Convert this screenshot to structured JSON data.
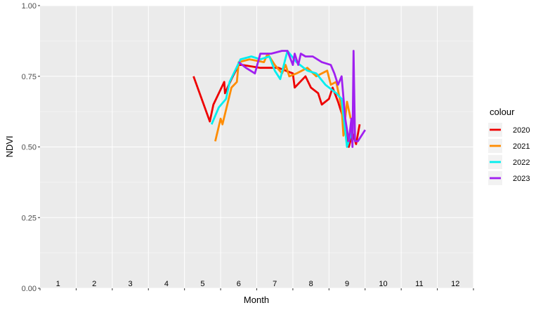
{
  "chart_data": {
    "type": "line",
    "xlabel": "Month",
    "ylabel": "NDVI",
    "xlim": [
      0.5,
      12.5
    ],
    "ylim": [
      0.0,
      1.0
    ],
    "month_labels": [
      "1",
      "2",
      "3",
      "4",
      "5",
      "6",
      "7",
      "8",
      "9",
      "10",
      "11",
      "12"
    ],
    "y_ticks": [
      0.0,
      0.25,
      0.5,
      0.75,
      1.0
    ],
    "y_tick_labels": [
      "0.00",
      "0.25",
      "0.50",
      "0.75",
      "1.00"
    ],
    "grid": true,
    "legend": {
      "title": "colour",
      "position": "right"
    },
    "series": [
      {
        "name": "2020",
        "color": "#ee0000",
        "points": [
          [
            4.75,
            0.75
          ],
          [
            5.2,
            0.59
          ],
          [
            5.3,
            0.65
          ],
          [
            5.6,
            0.73
          ],
          [
            5.62,
            0.69
          ],
          [
            5.8,
            0.74
          ],
          [
            6.0,
            0.79
          ],
          [
            6.1,
            0.79
          ],
          [
            6.6,
            0.78
          ],
          [
            7.1,
            0.78
          ],
          [
            7.3,
            0.77
          ],
          [
            7.5,
            0.76
          ],
          [
            7.55,
            0.71
          ],
          [
            7.7,
            0.73
          ],
          [
            7.85,
            0.75
          ],
          [
            8.0,
            0.71
          ],
          [
            8.2,
            0.69
          ],
          [
            8.3,
            0.65
          ],
          [
            8.5,
            0.67
          ],
          [
            8.6,
            0.71
          ],
          [
            8.75,
            0.66
          ],
          [
            8.9,
            0.6
          ],
          [
            9.05,
            0.5
          ],
          [
            9.15,
            0.55
          ],
          [
            9.25,
            0.51
          ],
          [
            9.35,
            0.58
          ]
        ]
      },
      {
        "name": "2021",
        "color": "#ff8c00",
        "points": [
          [
            5.35,
            0.52
          ],
          [
            5.5,
            0.6
          ],
          [
            5.55,
            0.58
          ],
          [
            5.8,
            0.71
          ],
          [
            5.95,
            0.73
          ],
          [
            6.0,
            0.8
          ],
          [
            6.3,
            0.81
          ],
          [
            6.7,
            0.8
          ],
          [
            6.8,
            0.83
          ],
          [
            7.0,
            0.79
          ],
          [
            7.2,
            0.76
          ],
          [
            7.3,
            0.79
          ],
          [
            7.4,
            0.75
          ],
          [
            7.6,
            0.76
          ],
          [
            7.9,
            0.78
          ],
          [
            8.15,
            0.75
          ],
          [
            8.45,
            0.77
          ],
          [
            8.55,
            0.72
          ],
          [
            8.7,
            0.73
          ],
          [
            8.85,
            0.64
          ],
          [
            8.9,
            0.54
          ],
          [
            9.0,
            0.66
          ],
          [
            9.1,
            0.6
          ]
        ]
      },
      {
        "name": "2022",
        "color": "#00eeee",
        "points": [
          [
            5.25,
            0.58
          ],
          [
            5.45,
            0.64
          ],
          [
            5.65,
            0.67
          ],
          [
            5.75,
            0.73
          ],
          [
            5.9,
            0.77
          ],
          [
            6.05,
            0.81
          ],
          [
            6.35,
            0.82
          ],
          [
            6.6,
            0.81
          ],
          [
            6.85,
            0.82
          ],
          [
            7.0,
            0.77
          ],
          [
            7.15,
            0.74
          ],
          [
            7.35,
            0.84
          ],
          [
            7.6,
            0.8
          ],
          [
            7.9,
            0.77
          ],
          [
            8.15,
            0.76
          ],
          [
            8.4,
            0.72
          ],
          [
            8.7,
            0.69
          ],
          [
            8.85,
            0.67
          ],
          [
            9.0,
            0.5
          ],
          [
            9.15,
            0.56
          ]
        ]
      },
      {
        "name": "2023",
        "color": "#a020f0",
        "points": [
          [
            6.0,
            0.8
          ],
          [
            6.2,
            0.78
          ],
          [
            6.45,
            0.76
          ],
          [
            6.6,
            0.83
          ],
          [
            6.9,
            0.83
          ],
          [
            7.2,
            0.84
          ],
          [
            7.35,
            0.84
          ],
          [
            7.5,
            0.79
          ],
          [
            7.55,
            0.83
          ],
          [
            7.65,
            0.79
          ],
          [
            7.72,
            0.83
          ],
          [
            7.85,
            0.82
          ],
          [
            8.05,
            0.82
          ],
          [
            8.3,
            0.8
          ],
          [
            8.55,
            0.79
          ],
          [
            8.65,
            0.76
          ],
          [
            8.75,
            0.72
          ],
          [
            8.85,
            0.75
          ],
          [
            8.95,
            0.6
          ],
          [
            9.05,
            0.52
          ],
          [
            9.12,
            0.6
          ],
          [
            9.15,
            0.5
          ],
          [
            9.18,
            0.84
          ],
          [
            9.22,
            0.52
          ],
          [
            9.3,
            0.52
          ],
          [
            9.5,
            0.56
          ]
        ]
      }
    ]
  }
}
